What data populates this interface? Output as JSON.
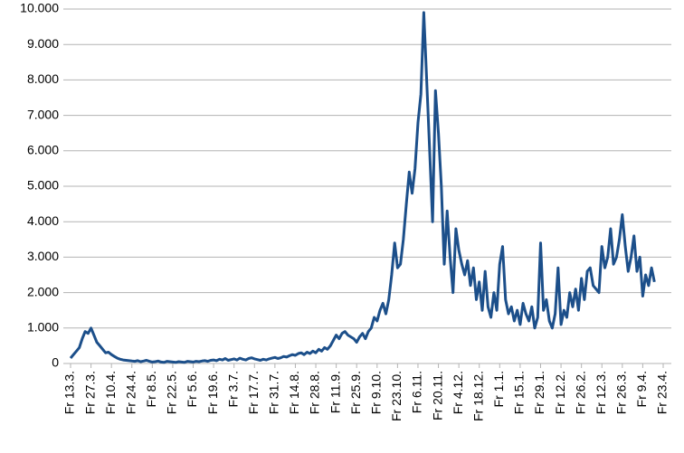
{
  "chart_data": {
    "type": "line",
    "color": "#1c4f8a",
    "grid": true,
    "ylim": [
      0,
      10000
    ],
    "yticks": [
      0,
      {
        "value": 1000,
        "label": "1.000"
      },
      {
        "value": 2000,
        "label": "2.000"
      },
      {
        "value": 3000,
        "label": "3.000"
      },
      {
        "value": 4000,
        "label": "4.000"
      },
      {
        "value": 5000,
        "label": "5.000"
      },
      {
        "value": 6000,
        "label": "6.000"
      },
      {
        "value": 7000,
        "label": "7.000"
      },
      {
        "value": 8000,
        "label": "8.000"
      },
      {
        "value": 9000,
        "label": "9.000"
      },
      {
        "value": 10000,
        "label": "10.000"
      }
    ],
    "categories": [
      "Fr 13.3.",
      null,
      null,
      null,
      null,
      null,
      null,
      "Fr 27.3.",
      null,
      null,
      null,
      null,
      null,
      null,
      "Fr 10.4.",
      null,
      null,
      null,
      null,
      null,
      null,
      "Fr 24.4.",
      null,
      null,
      null,
      null,
      null,
      null,
      "Fr 8.5.",
      null,
      null,
      null,
      null,
      null,
      null,
      "Fr 22.5.",
      null,
      null,
      null,
      null,
      null,
      null,
      "Fr 5.6.",
      null,
      null,
      null,
      null,
      null,
      null,
      "Fr 19.6.",
      null,
      null,
      null,
      null,
      null,
      null,
      "Fr 3.7.",
      null,
      null,
      null,
      null,
      null,
      null,
      "Fr 17.7.",
      null,
      null,
      null,
      null,
      null,
      null,
      "Fr 31.7.",
      null,
      null,
      null,
      null,
      null,
      null,
      "Fr 14.8.",
      null,
      null,
      null,
      null,
      null,
      null,
      "Fr 28.8.",
      null,
      null,
      null,
      null,
      null,
      null,
      "Fr 11.9.",
      null,
      null,
      null,
      null,
      null,
      null,
      "Fr 25.9.",
      null,
      null,
      null,
      null,
      null,
      null,
      "Fr 9.10.",
      null,
      null,
      null,
      null,
      null,
      null,
      "Fr 23.10.",
      null,
      null,
      null,
      null,
      null,
      null,
      "Fr 6.11.",
      null,
      null,
      null,
      null,
      null,
      null,
      "Fr 20.11.",
      null,
      null,
      null,
      null,
      null,
      null,
      "Fr 4.12.",
      null,
      null,
      null,
      null,
      null,
      null,
      "Fr 18.12.",
      null,
      null,
      null,
      null,
      null,
      null,
      "Fr 1.1.",
      null,
      null,
      null,
      null,
      null,
      null,
      "Fr 15.1.",
      null,
      null,
      null,
      null,
      null,
      null,
      "Fr 29.1.",
      null,
      null,
      null,
      null,
      null,
      null,
      "Fr 12.2.",
      null,
      null,
      null,
      null,
      null,
      null,
      "Fr 26.2.",
      null,
      null,
      null,
      null,
      null,
      null,
      "Fr 12.3.",
      null,
      null,
      null,
      null,
      null,
      null,
      "Fr 26.3.",
      null,
      null,
      null,
      null,
      null,
      null,
      "Fr 9.4.",
      null,
      null,
      null,
      null,
      null,
      null,
      "Fr 23.4."
    ],
    "values": [
      150,
      250,
      350,
      450,
      700,
      900,
      850,
      1000,
      800,
      600,
      500,
      400,
      300,
      320,
      250,
      200,
      150,
      120,
      100,
      90,
      80,
      70,
      60,
      80,
      50,
      70,
      90,
      60,
      40,
      50,
      70,
      40,
      30,
      60,
      50,
      40,
      30,
      50,
      40,
      30,
      60,
      50,
      40,
      60,
      50,
      70,
      80,
      60,
      90,
      100,
      80,
      120,
      100,
      140,
      90,
      110,
      130,
      100,
      150,
      120,
      100,
      140,
      160,
      130,
      110,
      90,
      120,
      100,
      130,
      150,
      170,
      140,
      160,
      200,
      180,
      220,
      250,
      230,
      280,
      300,
      250,
      320,
      280,
      350,
      300,
      400,
      350,
      450,
      400,
      500,
      650,
      800,
      700,
      850,
      900,
      800,
      750,
      700,
      600,
      750,
      850,
      700,
      900,
      1000,
      1300,
      1200,
      1500,
      1700,
      1400,
      1800,
      2500,
      3400,
      2700,
      2800,
      3500,
      4500,
      5400,
      4800,
      5500,
      6800,
      7600,
      9900,
      8000,
      6000,
      4000,
      7700,
      6500,
      5000,
      2800,
      4300,
      3000,
      2000,
      3800,
      3200,
      2800,
      2500,
      2900,
      2200,
      2700,
      1800,
      2300,
      1500,
      2600,
      1600,
      1300,
      2000,
      1500,
      2800,
      3300,
      1800,
      1400,
      1600,
      1200,
      1500,
      1100,
      1700,
      1400,
      1200,
      1600,
      1000,
      1300,
      3400,
      1500,
      1800,
      1200,
      1000,
      1400,
      2700,
      1100,
      1500,
      1300,
      2000,
      1600,
      2100,
      1500,
      2400,
      1800,
      2600,
      2700,
      2200,
      2100,
      2000,
      3300,
      2700,
      3000,
      3800,
      2800,
      3000,
      3500,
      4200,
      3300,
      2600,
      3000,
      3600,
      2600,
      3000,
      1900,
      2500,
      2200,
      2700,
      2300,
      null,
      null,
      null
    ]
  }
}
